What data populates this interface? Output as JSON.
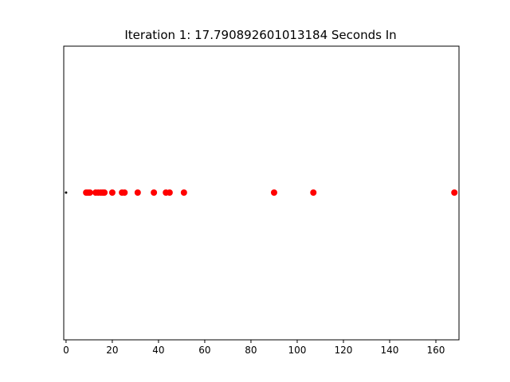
{
  "chart_data": {
    "type": "scatter",
    "title": "Iteration 1: 17.790892601013184 Seconds In",
    "xlabel": "",
    "ylabel": "",
    "xlim": [
      -1,
      170
    ],
    "xticks": [
      0,
      20,
      40,
      60,
      80,
      100,
      120,
      140,
      160
    ],
    "yticks": [],
    "grid": false,
    "series": [
      {
        "color": "#000000",
        "marker": "small-dot",
        "points": [
          [
            0,
            0
          ]
        ]
      },
      {
        "color": "#ff0000",
        "marker": "dot",
        "points": [
          [
            8.7,
            0
          ],
          [
            9.5,
            0
          ],
          [
            10.3,
            0
          ],
          [
            12.8,
            0
          ],
          [
            13.9,
            0
          ],
          [
            15,
            0
          ],
          [
            15.9,
            0
          ],
          [
            16.6,
            0
          ],
          [
            20,
            0
          ],
          [
            24.2,
            0
          ],
          [
            25.3,
            0
          ],
          [
            31,
            0
          ],
          [
            38,
            0
          ],
          [
            43.2,
            0
          ],
          [
            44.8,
            0
          ],
          [
            51,
            0
          ],
          [
            90,
            0
          ],
          [
            107,
            0
          ],
          [
            168,
            0
          ]
        ]
      }
    ]
  }
}
